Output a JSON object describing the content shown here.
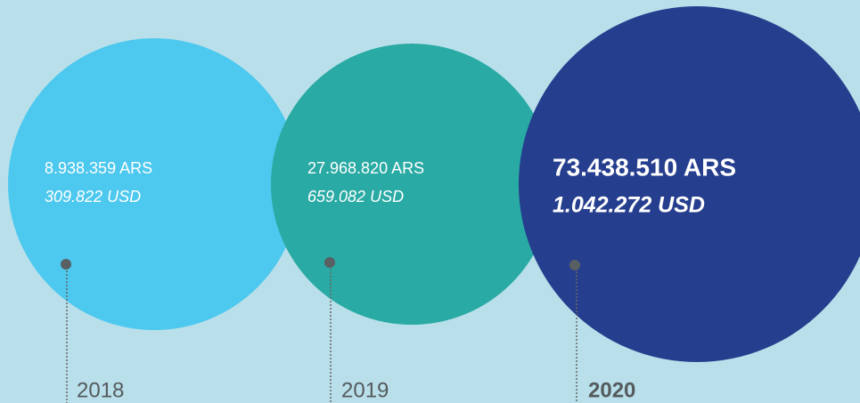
{
  "items": [
    {
      "ars": "8.938.359 ARS",
      "usd": "309.822  USD",
      "year": "2018"
    },
    {
      "ars": "27.968.820 ARS",
      "usd": "659.082 USD",
      "year": "2019"
    },
    {
      "ars": "73.438.510 ARS",
      "usd": "1.042.272 USD",
      "year": "2020"
    }
  ]
}
